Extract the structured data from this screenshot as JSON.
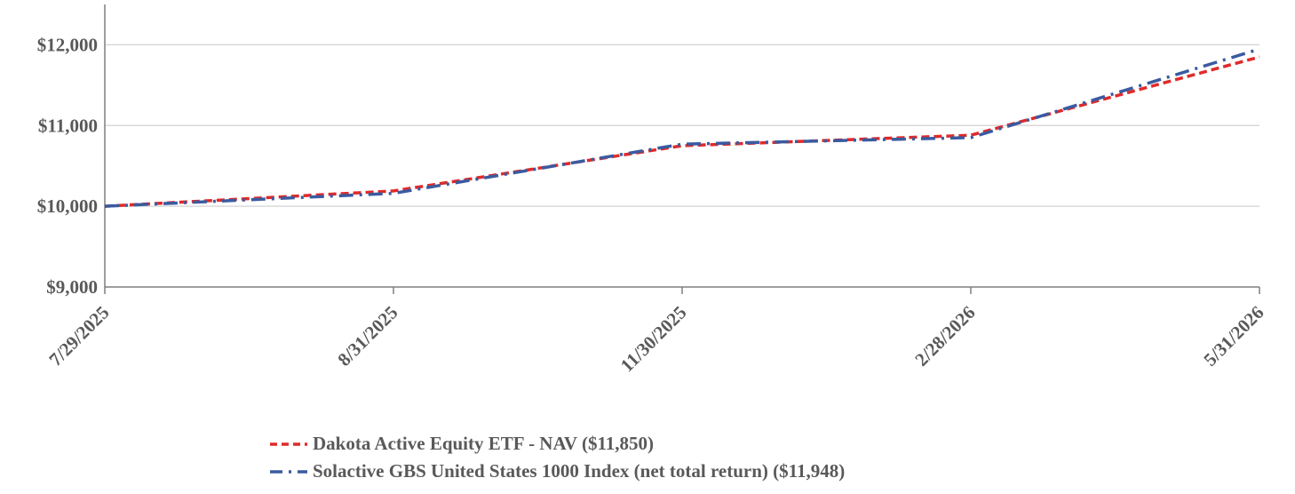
{
  "chart_data": {
    "type": "line",
    "title": "",
    "xlabel": "",
    "ylabel": "",
    "x": [
      "7/29/2025",
      "8/31/2025",
      "11/30/2025",
      "2/28/2026",
      "5/31/2026"
    ],
    "x_values": [
      0,
      33,
      124,
      214,
      306
    ],
    "ylim": [
      9000,
      12500
    ],
    "yticks": [
      9000,
      10000,
      11000,
      12000
    ],
    "ytick_labels": [
      "$9,000",
      "$10,000",
      "$11,000",
      "$12,000"
    ],
    "grid": true,
    "legend_position": "bottom",
    "series": [
      {
        "name": "Dakota Active Equity ETF - NAV ($11,850)",
        "color": "#e02a2a",
        "dash": "dashed",
        "values": [
          10000,
          10190,
          10750,
          10880,
          11850
        ]
      },
      {
        "name": "Solactive GBS United States 1000 Index (net total return) ($11,948)",
        "color": "#3a5ba0",
        "dash": "dash-dot",
        "values": [
          10000,
          10160,
          10770,
          10850,
          11948
        ]
      }
    ]
  }
}
